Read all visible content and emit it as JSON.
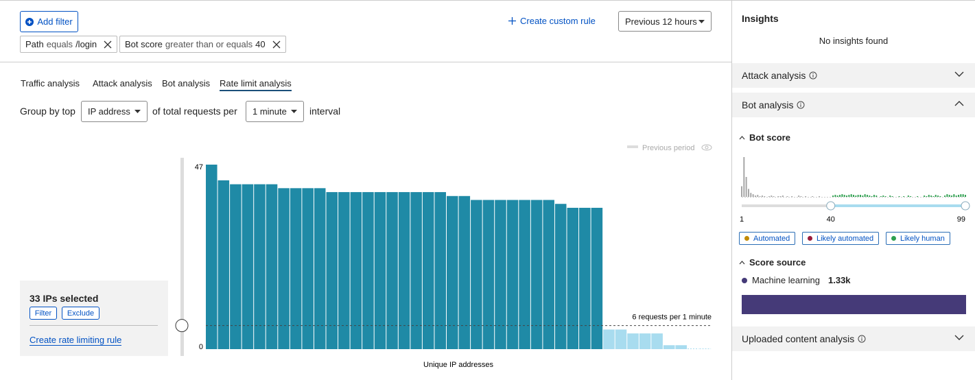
{
  "filters": {
    "add_filter": "Add filter",
    "chips": [
      {
        "field": "Path",
        "operator": "equals",
        "value": "/login"
      },
      {
        "field": "Bot score",
        "operator": "greater than or equals",
        "value": 40
      }
    ]
  },
  "create_custom_rule": "Create custom rule",
  "time_range": "Previous 12 hours",
  "tabs": [
    "Traffic analysis",
    "Attack analysis",
    "Bot analysis",
    "Rate limit analysis"
  ],
  "active_tab": 3,
  "group_by": {
    "prefix": "Group by top",
    "field": "IP address",
    "middle": "of total requests per",
    "interval": "1 minute",
    "suffix": "interval"
  },
  "chart_data": {
    "type": "bar",
    "x_label": "Unique IP addresses",
    "legend": "Previous period",
    "values": [
      47,
      43,
      42,
      42,
      42,
      42,
      41,
      41,
      41,
      41,
      40,
      40,
      40,
      40,
      40,
      40,
      40,
      40,
      40,
      40,
      39,
      39,
      38,
      38,
      38,
      38,
      38,
      38,
      38,
      37,
      36,
      36,
      36,
      5,
      5,
      4,
      4,
      4,
      1,
      1,
      0,
      0
    ],
    "selected_count": 33,
    "color": "#1f8aa6",
    "unselected_color": "#a8dcef",
    "ylim": [
      0,
      47
    ],
    "yticks": [
      0,
      47
    ],
    "threshold": {
      "value": 6,
      "label": "6 requests per 1 minute"
    }
  },
  "selection": {
    "title": "33 IPs selected",
    "actions": [
      "Filter",
      "Exclude"
    ],
    "link": "Create rate limiting rule"
  },
  "insights": {
    "title": "Insights",
    "empty": "No insights found",
    "sections": [
      "Attack analysis",
      "Bot analysis",
      "Uploaded content analysis"
    ],
    "bot_score": {
      "title": "Bot score",
      "xlim": [
        1,
        99
      ],
      "xticks": [
        1,
        40,
        99
      ],
      "threshold": 40,
      "values": [
        16,
        60,
        30,
        12,
        6,
        4,
        2,
        3,
        1,
        2,
        1,
        0,
        1,
        2,
        1,
        0,
        1,
        1,
        2,
        0,
        1,
        0,
        1,
        0,
        0,
        2,
        1,
        0,
        1,
        0,
        0,
        1,
        0,
        0,
        1,
        0,
        0,
        0,
        0,
        0,
        2,
        3,
        2,
        3,
        4,
        3,
        2,
        3,
        4,
        3,
        2,
        3,
        3,
        2,
        4,
        3,
        2,
        1,
        3,
        2,
        0,
        1,
        2,
        1,
        0,
        2,
        1,
        0,
        0,
        1,
        0,
        1,
        0,
        2,
        1,
        0,
        0,
        1,
        0,
        0,
        2,
        1,
        3,
        2,
        1,
        3,
        2,
        1,
        0,
        2,
        4,
        3,
        2,
        4,
        2,
        3,
        4,
        4,
        3
      ],
      "below_color": "#a6a6a6",
      "above_color": "#2ea04f",
      "legend": [
        {
          "name": "Automated",
          "color": "#c28a00"
        },
        {
          "name": "Likely automated",
          "color": "#9b1c3b"
        },
        {
          "name": "Likely human",
          "color": "#2ea04f"
        }
      ]
    },
    "score_source": {
      "title": "Score source",
      "items": [
        {
          "name": "Machine learning",
          "value": 1330,
          "value_label": "1.33k",
          "color": "#453a78"
        }
      ]
    }
  }
}
